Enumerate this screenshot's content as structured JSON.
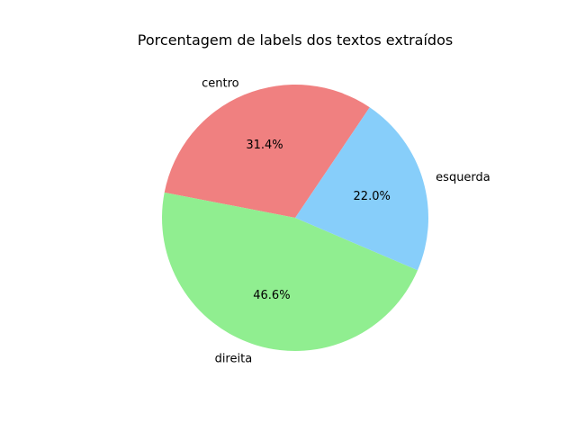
{
  "chart_data": {
    "type": "pie",
    "title": "Porcentagem de labels dos textos extraídos",
    "slices": [
      {
        "label": "centro",
        "value": 31.4,
        "pct_label": "31.4%",
        "color": "#f08080"
      },
      {
        "label": "direita",
        "value": 46.6,
        "pct_label": "46.6%",
        "color": "#90ee90"
      },
      {
        "label": "esquerda",
        "value": 22.0,
        "pct_label": "22.0%",
        "color": "#87cefa"
      }
    ],
    "start_angle_deg": 56,
    "direction": "counterclockwise",
    "legend": false
  }
}
